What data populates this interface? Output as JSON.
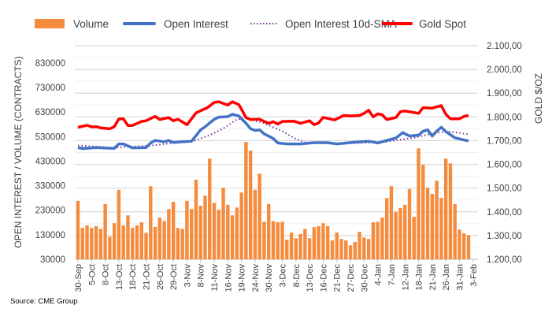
{
  "source": "Source: CME Group",
  "chart_data": {
    "type": "bar+line",
    "title": "",
    "ylabel_left": "OPEN INTEREST / VOLUME (CONTRACTS)",
    "ylabel_right": "GOLD $/OZ",
    "ylim_left": [
      30000,
      900000
    ],
    "ylim_right": [
      1200,
      2100
    ],
    "yticks_left": [
      "30000",
      "130000",
      "230000",
      "330000",
      "430000",
      "530000",
      "630000",
      "730000",
      "830000"
    ],
    "yticks_right": [
      "1.200,00",
      "1.300,00",
      "1.400,00",
      "1.500,00",
      "1.600,00",
      "1.700,00",
      "1.800,00",
      "1.900,00",
      "2.000,00",
      "2.100,00"
    ],
    "xtick_labels": [
      "30-Sep",
      "5-Oct",
      "8-Oct",
      "13-Oct",
      "18-Oct",
      "21-Oct",
      "26-Oct",
      "29-Oct",
      "3-Nov",
      "8-Nov",
      "11-Nov",
      "16-Nov",
      "19-Nov",
      "24-Nov",
      "30-Nov",
      "3-Dec",
      "8-Dec",
      "13-Dec",
      "16-Dec",
      "21-Dec",
      "27-Dec",
      "30-Dec",
      "4-Jan",
      "7-Jan",
      "12-Jan",
      "18-Jan",
      "21-Jan",
      "26-Jan",
      "31-Jan",
      "3-Feb"
    ],
    "xtick_every": 3,
    "n_slots": 88,
    "grid": true,
    "legend": {
      "position": "top",
      "entries": [
        "Volume",
        "Open Interest",
        "Open Interest 10d-SMA",
        "Gold Spot"
      ]
    },
    "colors": {
      "volume": "#f58b3c",
      "open_interest": "#4472c4",
      "sma": "#7030a0",
      "gold": "#ff0000"
    },
    "volume": [
      268000,
      158000,
      168000,
      158000,
      165000,
      154000,
      255000,
      122000,
      177000,
      313000,
      168000,
      209000,
      158000,
      168000,
      181000,
      138000,
      328000,
      162000,
      200000,
      186000,
      235000,
      264000,
      158000,
      154000,
      268000,
      235000,
      354000,
      248000,
      289000,
      440000,
      260000,
      232000,
      322000,
      252000,
      209000,
      241000,
      302000,
      508000,
      473000,
      313000,
      379000,
      183000,
      255000,
      186000,
      181000,
      183000,
      110000,
      139000,
      116000,
      133000,
      154000,
      116000,
      161000,
      165000,
      177000,
      165000,
      107000,
      139000,
      113000,
      107000,
      87000,
      101000,
      142000,
      119000,
      113000,
      181000,
      183000,
      200000,
      280000,
      328000,
      223000,
      239000,
      252000,
      316000,
      203000,
      482000,
      415000,
      322000,
      296000,
      350000,
      280000,
      440000,
      421000,
      255000,
      151000,
      136000,
      129000
    ],
    "open_interest": [
      [
        0,
        485000
      ],
      [
        1,
        481000
      ],
      [
        4,
        485000
      ],
      [
        8,
        482000
      ],
      [
        9,
        500000
      ],
      [
        10,
        500000
      ],
      [
        12,
        484000
      ],
      [
        15,
        485000
      ],
      [
        16,
        504000
      ],
      [
        17,
        514000
      ],
      [
        19,
        509000
      ],
      [
        20,
        514000
      ],
      [
        21,
        506000
      ],
      [
        23,
        509000
      ],
      [
        25,
        511000
      ],
      [
        27,
        557000
      ],
      [
        28,
        570000
      ],
      [
        30,
        600000
      ],
      [
        31,
        609000
      ],
      [
        33,
        611000
      ],
      [
        34,
        621000
      ],
      [
        35.4,
        614000
      ],
      [
        37,
        584000
      ],
      [
        38,
        562000
      ],
      [
        39,
        555000
      ],
      [
        40,
        557000
      ],
      [
        41,
        541000
      ],
      [
        43,
        522000
      ],
      [
        44,
        504000
      ],
      [
        46,
        500000
      ],
      [
        49,
        500000
      ],
      [
        52,
        505000
      ],
      [
        55,
        505000
      ],
      [
        57,
        500000
      ],
      [
        61,
        507000
      ],
      [
        64,
        511000
      ],
      [
        66,
        504000
      ],
      [
        68,
        514000
      ],
      [
        70,
        524000
      ],
      [
        71.5,
        546000
      ],
      [
        73,
        532000
      ],
      [
        75,
        536000
      ],
      [
        76,
        552000
      ],
      [
        77,
        557000
      ],
      [
        78,
        532000
      ],
      [
        79,
        552000
      ],
      [
        80,
        568000
      ],
      [
        81,
        550000
      ],
      [
        83,
        525000
      ],
      [
        86,
        512000
      ]
    ],
    "open_interest_sma": [
      [
        0,
        493000
      ],
      [
        8,
        485000
      ],
      [
        10,
        487000
      ],
      [
        16,
        493000
      ],
      [
        21,
        504000
      ],
      [
        25,
        509000
      ],
      [
        29,
        536000
      ],
      [
        32,
        563000
      ],
      [
        35,
        600000
      ],
      [
        37,
        605000
      ],
      [
        41,
        584000
      ],
      [
        45,
        552000
      ],
      [
        48,
        520000
      ],
      [
        50,
        507000
      ],
      [
        56,
        501000
      ],
      [
        62,
        504000
      ],
      [
        68,
        509000
      ],
      [
        74,
        525000
      ],
      [
        79,
        546000
      ],
      [
        82,
        550000
      ],
      [
        86,
        539000
      ]
    ],
    "gold_spot": [
      [
        0,
        1756
      ],
      [
        2,
        1765
      ],
      [
        3,
        1758
      ],
      [
        4,
        1759
      ],
      [
        5,
        1754
      ],
      [
        7,
        1750
      ],
      [
        8,
        1759
      ],
      [
        9,
        1791
      ],
      [
        10,
        1792
      ],
      [
        11,
        1764
      ],
      [
        12,
        1764
      ],
      [
        14,
        1781
      ],
      [
        15,
        1784
      ],
      [
        17,
        1802
      ],
      [
        18,
        1789
      ],
      [
        20,
        1797
      ],
      [
        21,
        1784
      ],
      [
        22,
        1790
      ],
      [
        24,
        1767
      ],
      [
        26,
        1817
      ],
      [
        27,
        1826
      ],
      [
        28.5,
        1839
      ],
      [
        30,
        1861
      ],
      [
        31,
        1864
      ],
      [
        33,
        1850
      ],
      [
        34,
        1864
      ],
      [
        35.4,
        1852
      ],
      [
        36,
        1833
      ],
      [
        37,
        1797
      ],
      [
        38,
        1789
      ],
      [
        40,
        1790
      ],
      [
        41,
        1781
      ],
      [
        42,
        1773
      ],
      [
        43,
        1780
      ],
      [
        44,
        1770
      ],
      [
        45,
        1781
      ],
      [
        47.6,
        1782
      ],
      [
        49,
        1773
      ],
      [
        51,
        1784
      ],
      [
        52,
        1767
      ],
      [
        53,
        1775
      ],
      [
        54,
        1798
      ],
      [
        56.5,
        1787
      ],
      [
        58.5,
        1806
      ],
      [
        60,
        1804
      ],
      [
        62,
        1806
      ],
      [
        63,
        1815
      ],
      [
        64,
        1828
      ],
      [
        65,
        1800
      ],
      [
        66,
        1813
      ],
      [
        67,
        1809
      ],
      [
        68,
        1789
      ],
      [
        70,
        1797
      ],
      [
        71,
        1822
      ],
      [
        72,
        1825
      ],
      [
        75,
        1815
      ],
      [
        76,
        1839
      ],
      [
        78,
        1837
      ],
      [
        80,
        1848
      ],
      [
        81,
        1811
      ],
      [
        82,
        1792
      ],
      [
        84,
        1792
      ],
      [
        85,
        1802
      ],
      [
        86,
        1806
      ]
    ]
  }
}
